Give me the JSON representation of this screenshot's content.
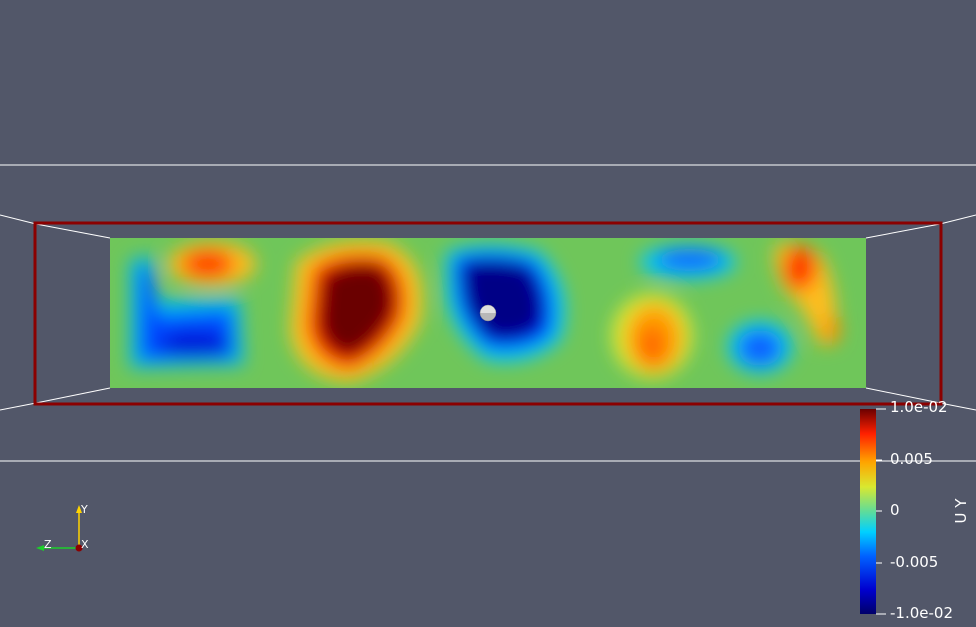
{
  "window": {
    "background": "#525769"
  },
  "scene": {
    "field_name": "U Y",
    "bounding_box_color": "#8b0000",
    "grid_line_color": "#ffffff",
    "plane_base_color": "#6fc65a"
  },
  "colorbar": {
    "title": "U Y",
    "range": [
      -0.01,
      0.01
    ],
    "tick_labels": [
      "1.0e-02",
      "0.005",
      "0",
      "-0.005",
      "-1.0e-02"
    ],
    "colormap": [
      "#00006a",
      "#0000d0",
      "#0060ff",
      "#00d0ff",
      "#5fdc9a",
      "#d9e830",
      "#ffa500",
      "#ff2000",
      "#6b0000"
    ]
  },
  "orientation_axes": {
    "y_label": "Y",
    "x_label": "X",
    "z_label": "Z",
    "y_color": "#ffd400",
    "z_color": "#1ccf2a",
    "x_color": "#8b0000"
  }
}
